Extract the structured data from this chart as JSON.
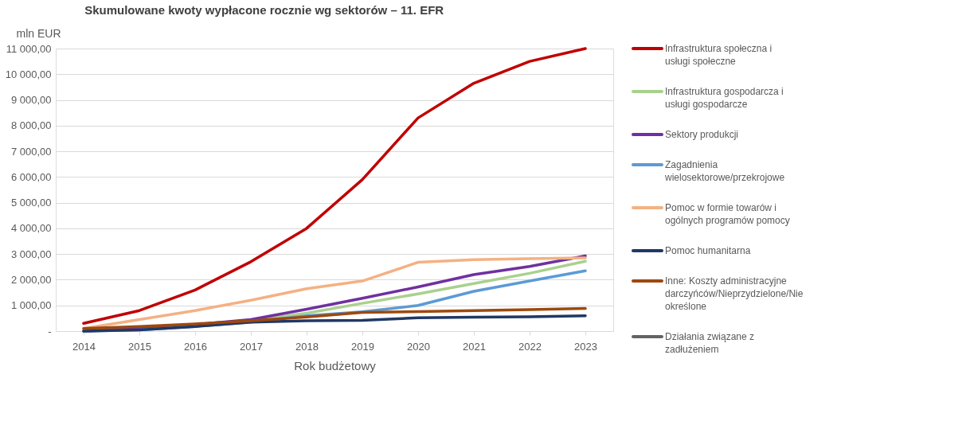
{
  "chart_data": {
    "type": "line",
    "title": "Skumulowane kwoty wypłacone rocznie wg sektorów – 11. EFR",
    "xlabel": "Rok budżetowy",
    "ylabel": "mln EUR",
    "categories": [
      "2014",
      "2015",
      "2016",
      "2017",
      "2018",
      "2019",
      "2020",
      "2021",
      "2022",
      "2023"
    ],
    "series": [
      {
        "name": "Infrastruktura społeczna i usługi społeczne",
        "color": "#c00000",
        "values": [
          300,
          800,
          1600,
          2700,
          4000,
          5900,
          8300,
          9650,
          10500,
          11000
        ]
      },
      {
        "name": "Infrastruktura gospodarcza i usługi gospodarcze",
        "color": "#a9d18e",
        "values": [
          0,
          80,
          200,
          400,
          700,
          1080,
          1450,
          1850,
          2250,
          2720
        ]
      },
      {
        "name": "Sektory produkcji",
        "color": "#7030a0",
        "values": [
          0,
          100,
          250,
          450,
          850,
          1280,
          1720,
          2200,
          2520,
          2930
        ]
      },
      {
        "name": "Zagadnienia wielosektorowe/przekrojowe",
        "color": "#5b9bd5",
        "values": [
          0,
          50,
          180,
          350,
          600,
          750,
          1000,
          1550,
          1950,
          2350
        ]
      },
      {
        "name": "Pomoc w formie towarów i ogólnych programów pomocy",
        "color": "#f4b183",
        "values": [
          100,
          450,
          800,
          1200,
          1650,
          1950,
          2680,
          2780,
          2820,
          2850
        ]
      },
      {
        "name": "Pomoc humanitarna",
        "color": "#203864",
        "values": [
          0,
          50,
          180,
          350,
          400,
          420,
          520,
          540,
          560,
          600
        ]
      },
      {
        "name": "Inne: Koszty administracyjne darczyńców/Nieprzydzielone/Nie określone",
        "color": "#9e480e",
        "values": [
          100,
          180,
          280,
          400,
          550,
          730,
          760,
          800,
          840,
          880
        ]
      },
      {
        "name": "Działania związane z zadłużeniem",
        "color": "#636363",
        "values": [
          null,
          null,
          null,
          null,
          null,
          null,
          null,
          null,
          null,
          null
        ]
      }
    ],
    "ylim": [
      0,
      11000
    ],
    "yticks": [
      {
        "value": 0,
        "label": "-"
      },
      {
        "value": 1000,
        "label": "1 000,00"
      },
      {
        "value": 2000,
        "label": "2 000,00"
      },
      {
        "value": 3000,
        "label": "3 000,00"
      },
      {
        "value": 4000,
        "label": "4 000,00"
      },
      {
        "value": 5000,
        "label": "5 000,00"
      },
      {
        "value": 6000,
        "label": "6 000,00"
      },
      {
        "value": 7000,
        "label": "7 000,00"
      },
      {
        "value": 8000,
        "label": "8 000,00"
      },
      {
        "value": 9000,
        "label": "9 000,00"
      },
      {
        "value": 10000,
        "label": "10 000,00"
      },
      {
        "value": 11000,
        "label": "11 000,00"
      }
    ],
    "grid": "y",
    "legend": "right",
    "marker": "none",
    "line_style": "solid"
  }
}
